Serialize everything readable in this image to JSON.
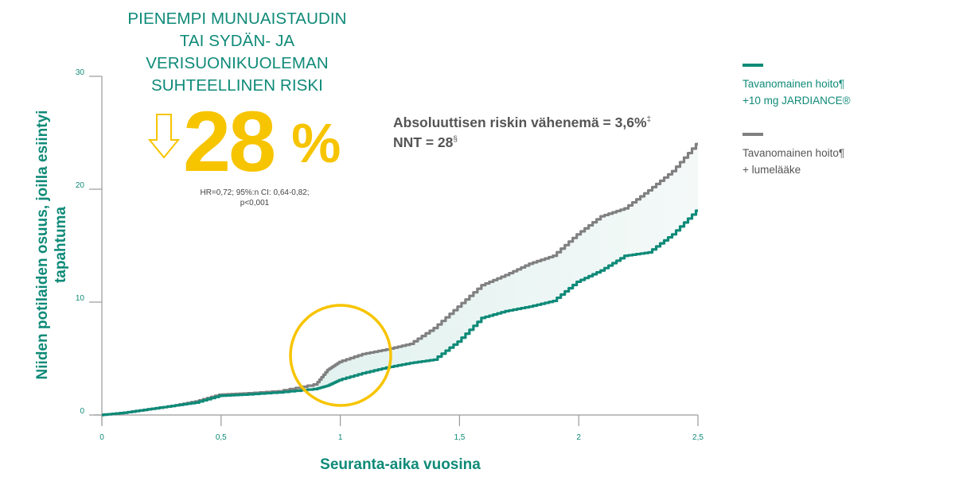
{
  "headline": {
    "lines": [
      "PIENEMPI MUNUAISTAUDIN",
      "TAI SYDÄN- JA",
      "VERISUONIKUOLEMAN",
      "SUHTEELLINEN RISKI"
    ]
  },
  "relative_risk": {
    "value": "28",
    "unit": "%",
    "icon": "down-arrow-icon",
    "stats_line1": "HR=0,72; 95%:n CI: 0,64-0,82;",
    "stats_line2": "p<0,001"
  },
  "absolute_risk": {
    "line1": "Absoluuttisen riskin vähenemä  = 3,6%",
    "line1_sup": "‡",
    "line2": "NNT = 28",
    "line2_sup": "§"
  },
  "legend": [
    {
      "line1": "Tavanomainen hoito¶",
      "line2": "+10 mg JARDIANCE®",
      "color": "#0f8a78"
    },
    {
      "line1": "Tavanomainen hoito¶",
      "line2": "+ lumelääke",
      "color": "#808080"
    }
  ],
  "colors": {
    "teal": "#0f8a78",
    "gray": "#808080",
    "yellow": "#f7c400",
    "fill": "#e3f2f0"
  },
  "chart_data": {
    "type": "line",
    "title": "PIENEMPI MUNUAISTAUDIN TAI SYDÄN- JA VERISUONIKUOLEMAN SUHTEELLINEN RISKI",
    "xlabel": "Seuranta-aika vuosina",
    "ylabel": "Niiden potilaiden osuus, joilla esiintyi tapahtuma",
    "xlim": [
      0,
      2.5
    ],
    "ylim": [
      0,
      30
    ],
    "x_ticks": [
      "0",
      "0,5",
      "1",
      "1,5",
      "2",
      "2,5"
    ],
    "y_ticks": [
      "0",
      "10",
      "20",
      "30"
    ],
    "grid": false,
    "legend_position": "right",
    "x": [
      0,
      0.1,
      0.2,
      0.3,
      0.4,
      0.5,
      0.6,
      0.75,
      0.9,
      0.95,
      1.0,
      1.1,
      1.2,
      1.3,
      1.4,
      1.5,
      1.6,
      1.7,
      1.8,
      1.9,
      2.0,
      2.1,
      2.2,
      2.3,
      2.4,
      2.5
    ],
    "series": [
      {
        "name": "Tavanomainen hoito + 10 mg JARDIANCE",
        "color": "#0f8a78",
        "values": [
          0,
          0.2,
          0.5,
          0.8,
          1.1,
          1.7,
          1.8,
          2.0,
          2.3,
          2.6,
          3.1,
          3.7,
          4.2,
          4.6,
          4.9,
          6.5,
          8.6,
          9.2,
          9.6,
          10.1,
          11.8,
          12.8,
          14.1,
          14.4,
          16.0,
          18.1
        ]
      },
      {
        "name": "Tavanomainen hoito + lumelääke",
        "color": "#808080",
        "values": [
          0,
          0.2,
          0.5,
          0.8,
          1.2,
          1.8,
          1.9,
          2.1,
          2.7,
          4.0,
          4.7,
          5.4,
          5.8,
          6.3,
          7.7,
          9.6,
          11.5,
          12.4,
          13.4,
          14.1,
          16.0,
          17.6,
          18.3,
          19.9,
          21.6,
          24.0
        ]
      }
    ],
    "annotations": [
      {
        "type": "circle",
        "center_x": 1.0,
        "center_y": 4.5,
        "color": "#f7c400"
      },
      {
        "text": "Absoluuttisen riskin vähenemä = 3,6%‡"
      },
      {
        "text": "NNT = 28§"
      },
      {
        "text": "28 %"
      },
      {
        "text": "HR=0,72; 95%:n CI: 0,64-0,82; p<0,001"
      }
    ]
  }
}
